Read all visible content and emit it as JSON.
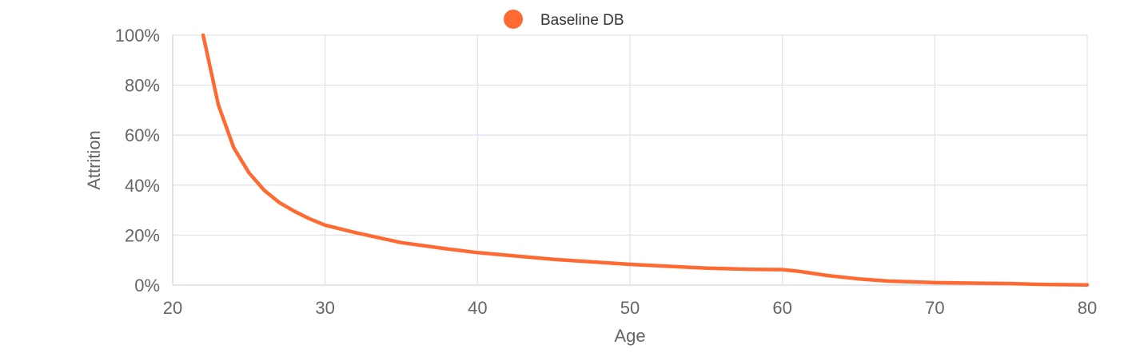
{
  "chart_data": {
    "type": "line",
    "title": "",
    "xlabel": "Age",
    "ylabel": "Attrition",
    "xlim": [
      20,
      80
    ],
    "ylim": [
      0,
      100
    ],
    "x_ticks": [
      20,
      30,
      40,
      50,
      60,
      70,
      80
    ],
    "y_ticks": [
      "0%",
      "20%",
      "40%",
      "60%",
      "80%",
      "100%"
    ],
    "y_tick_values": [
      0,
      20,
      40,
      60,
      80,
      100
    ],
    "grid": true,
    "legend_position": "top-center",
    "series": [
      {
        "name": "Baseline DB",
        "color": "#ff6a33",
        "x": [
          22,
          23,
          24,
          25,
          26,
          27,
          28,
          29,
          30,
          32,
          35,
          38,
          40,
          45,
          50,
          55,
          58,
          60,
          61,
          63,
          65,
          67,
          70,
          75,
          77,
          80
        ],
        "y": [
          100,
          72,
          55,
          45,
          38,
          33,
          29.5,
          26.5,
          24,
          21,
          17,
          14.5,
          13,
          10.3,
          8.3,
          6.8,
          6.3,
          6.2,
          5.6,
          3.8,
          2.5,
          1.6,
          1.0,
          0.6,
          0.3,
          0.1
        ]
      }
    ]
  }
}
